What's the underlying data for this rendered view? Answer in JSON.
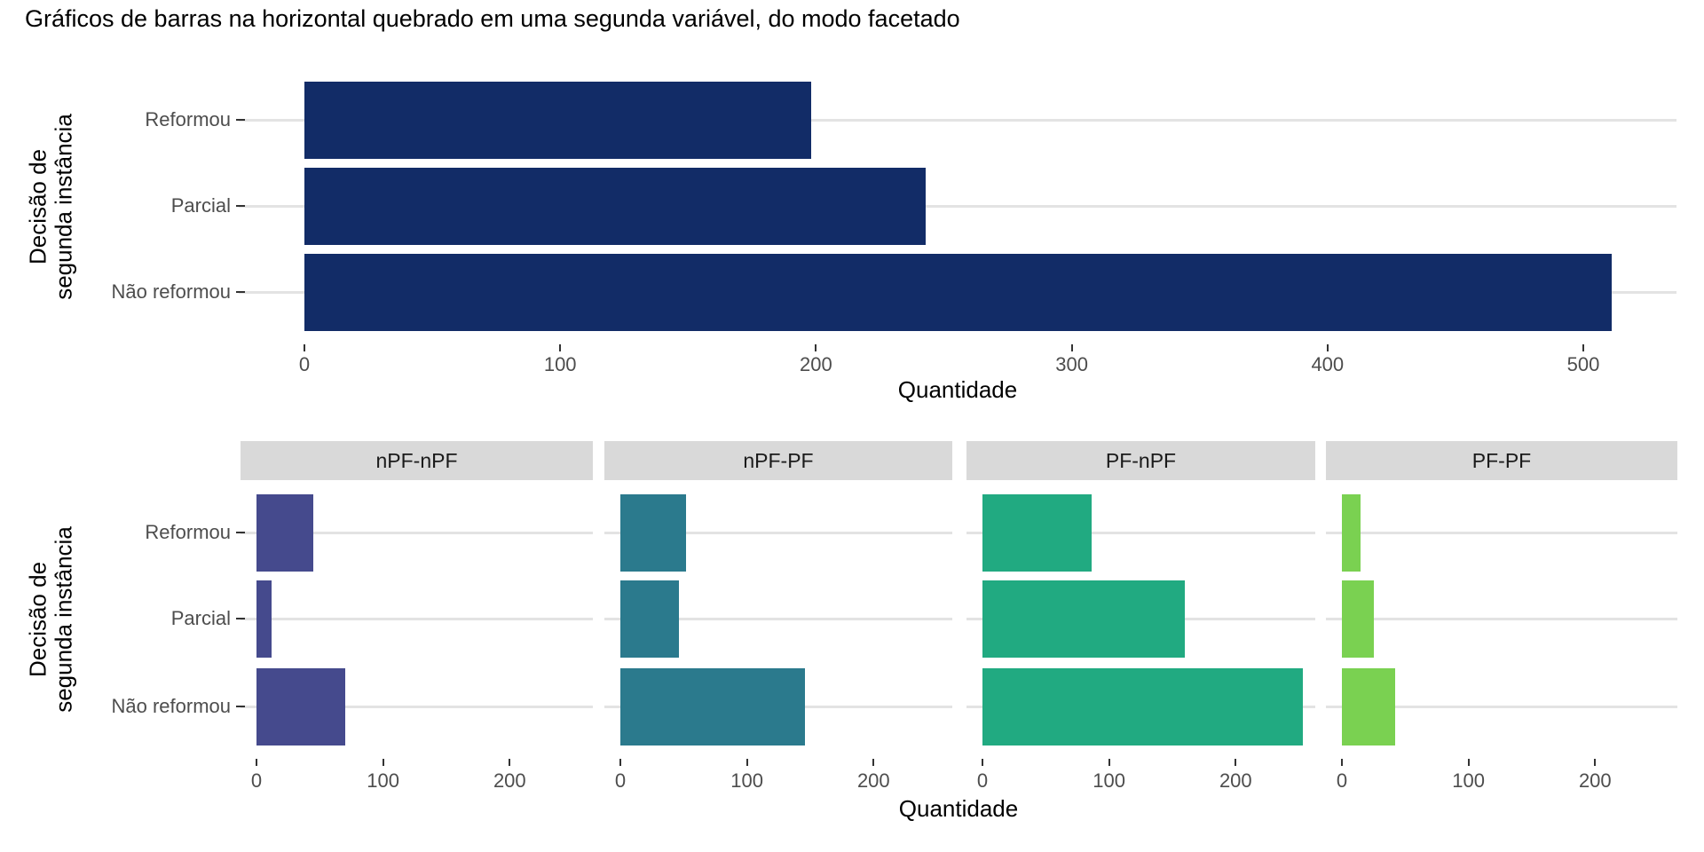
{
  "title": "Gráficos de barras na horizontal quebrado em uma segunda variável, do modo facetado",
  "style": {
    "background": "#ffffff",
    "grid_color": "#e3e3e3",
    "tick_mark_color": "#333333",
    "tick_label_color": "#4d4d4d",
    "strip_background": "#d9d9d9",
    "strip_text_color": "#1a1a1a"
  },
  "chart_data": [
    {
      "type": "bar",
      "orientation": "horizontal",
      "title": "",
      "xlabel": "Quantidade",
      "ylabel": "Decisão de segunda instância",
      "ylabel_lines": [
        "Decisão de",
        "segunda instância"
      ],
      "categories": [
        "Reformou",
        "Parcial",
        "Não reformou"
      ],
      "values": [
        198,
        243,
        511
      ],
      "x_ticks": [
        0,
        100,
        200,
        300,
        400,
        500
      ],
      "xlim": [
        -26,
        537
      ],
      "bar_color": "#122c67",
      "grid": "horizontal-major-only",
      "legend": "none"
    },
    {
      "type": "bar",
      "orientation": "horizontal",
      "title": "",
      "xlabel": "Quantidade",
      "ylabel": "Decisão de segunda instância",
      "ylabel_lines": [
        "Decisão de",
        "segunda instância"
      ],
      "categories": [
        "Reformou",
        "Parcial",
        "Não reformou"
      ],
      "x_ticks": [
        0,
        100,
        200
      ],
      "xlim": [
        -13,
        266
      ],
      "grid": "horizontal-major-only",
      "legend": "none",
      "facets": [
        {
          "label": "nPF-nPF",
          "color": "#454a8d",
          "values": [
            45,
            12,
            70
          ]
        },
        {
          "label": "nPF-PF",
          "color": "#2b7a8d",
          "values": [
            52,
            46,
            146
          ]
        },
        {
          "label": "PF-nPF",
          "color": "#21aa81",
          "values": [
            86,
            160,
            253
          ]
        },
        {
          "label": "PF-PF",
          "color": "#7ad151",
          "values": [
            15,
            25,
            42
          ]
        }
      ]
    }
  ]
}
